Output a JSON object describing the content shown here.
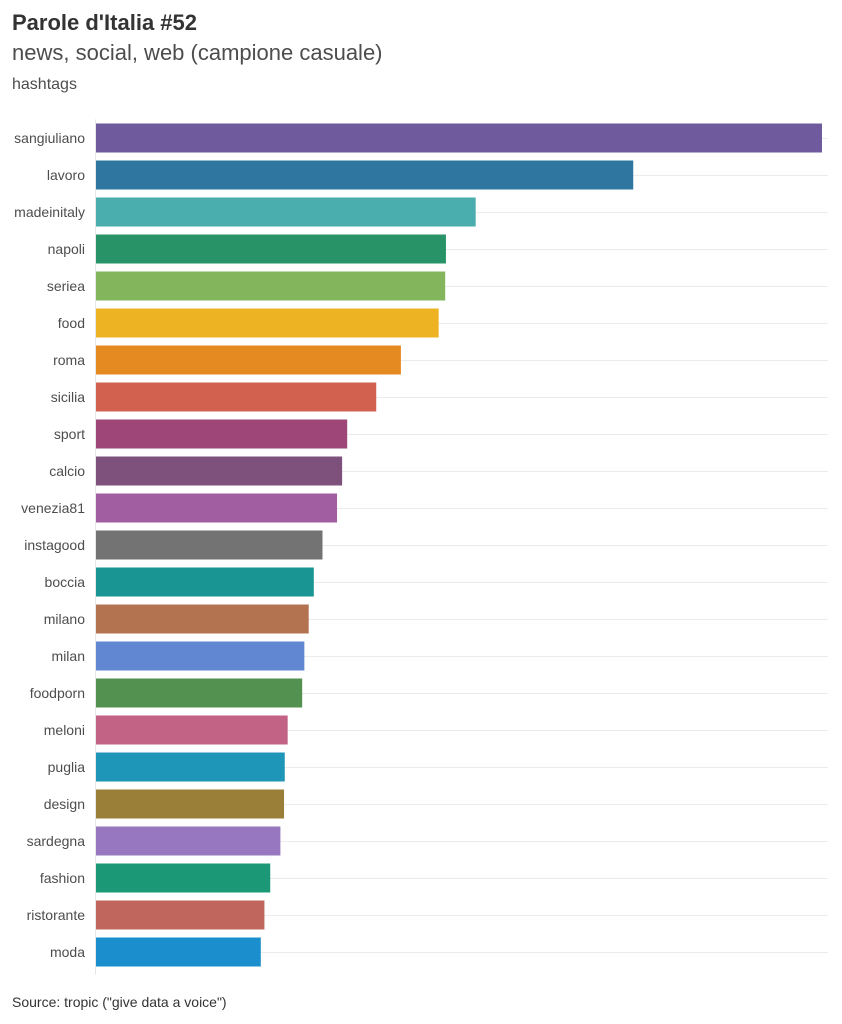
{
  "title": "Parole d'Italia #52",
  "subtitle": "news, social, web (campione casuale)",
  "source": "Source: tropic (\"give data a voice\")",
  "chart_data": {
    "type": "bar",
    "orientation": "horizontal",
    "ylabel": "hashtags",
    "xlabel": "",
    "xlim": [
      0,
      100
    ],
    "grid": true,
    "legend": "none",
    "categories": [
      "sangiuliano",
      "lavoro",
      "madeinitaly",
      "napoli",
      "seriea",
      "food",
      "roma",
      "sicilia",
      "sport",
      "calcio",
      "venezia81",
      "instagood",
      "boccia",
      "milano",
      "milan",
      "foodporn",
      "meloni",
      "puglia",
      "design",
      "sardegna",
      "fashion",
      "ristorante",
      "moda"
    ],
    "values": [
      100,
      74,
      52.3,
      48.2,
      48.1,
      47.2,
      42,
      38.6,
      34.6,
      33.9,
      33.2,
      31.2,
      30,
      29.3,
      28.7,
      28.4,
      26.4,
      26,
      25.9,
      25.4,
      24,
      23.2,
      22.7
    ],
    "colors": [
      "#6e5a9c",
      "#2f77a0",
      "#4aaeae",
      "#289366",
      "#83b65c",
      "#eeb323",
      "#e58a20",
      "#d26150",
      "#9e4677",
      "#7e517c",
      "#a15ea0",
      "#737373",
      "#199693",
      "#b47350",
      "#6287d2",
      "#539151",
      "#c26385",
      "#1d96b7",
      "#9a7f38",
      "#9677c0",
      "#1b9876",
      "#c0665c",
      "#1b8fcd"
    ]
  }
}
